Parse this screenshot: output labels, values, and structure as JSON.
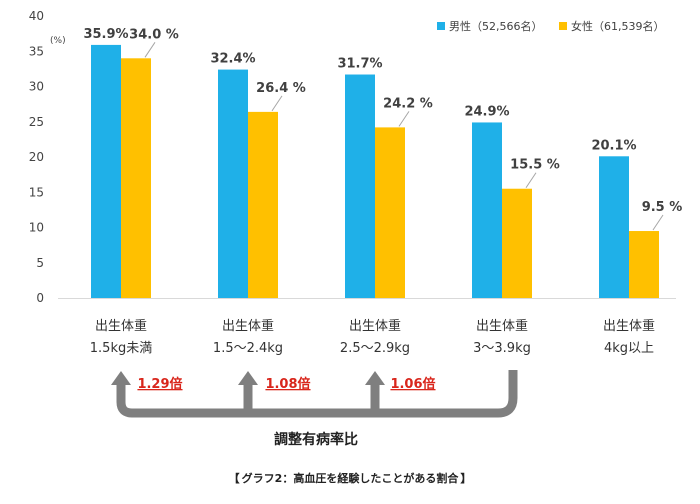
{
  "chart_data": {
    "type": "bar",
    "y_unit": "(%)",
    "ylim": [
      0,
      40
    ],
    "y_ticks": [
      0,
      5,
      10,
      15,
      20,
      25,
      30,
      35,
      40
    ],
    "grid": false,
    "legend_position": "top-right",
    "categories": [
      [
        "出生体重",
        "1.5kg未満"
      ],
      [
        "出生体重",
        "1.5～2.4kg"
      ],
      [
        "出生体重",
        "2.5～2.9kg"
      ],
      [
        "出生体重",
        "3～3.9kg"
      ],
      [
        "出生体重",
        "4kg以上"
      ]
    ],
    "series": [
      {
        "name": "男性（52,566名）",
        "color": "#1fb0e8",
        "values": [
          35.9,
          32.4,
          31.7,
          24.9,
          20.1
        ],
        "labels": [
          "35.9%",
          "32.4%",
          "31.7%",
          "24.9%",
          "20.1%"
        ]
      },
      {
        "name": "女性（61,539名）",
        "color": "#ffc000",
        "values": [
          34.0,
          26.4,
          24.2,
          15.5,
          9.5
        ],
        "labels": [
          "34.0 %",
          "26.4 %",
          "24.2 %",
          "15.5 %",
          "9.5 %"
        ]
      }
    ],
    "annotations": {
      "ratios": [
        "1.29倍",
        "1.08倍",
        "1.06倍"
      ],
      "ratio_color": "#d9261c",
      "bracket_color": "#7f7f7f",
      "label": "調整有病率比"
    }
  },
  "caption": {
    "open": "【",
    "text": "グラフ2：高血圧を経験したことがある割合",
    "close": "】"
  }
}
